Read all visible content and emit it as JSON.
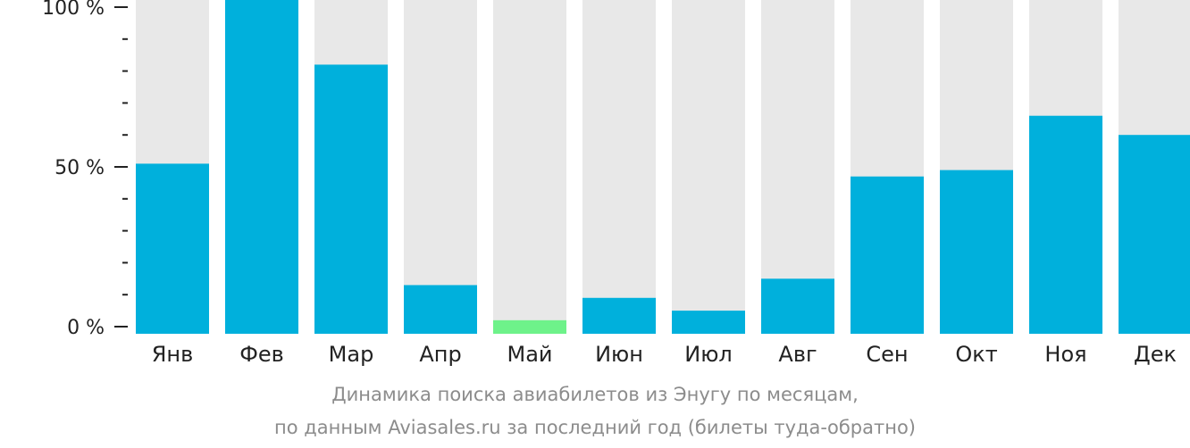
{
  "chart_data": {
    "type": "bar",
    "categories": [
      "Янв",
      "Фев",
      "Мар",
      "Апр",
      "Май",
      "Июн",
      "Июл",
      "Авг",
      "Сен",
      "Окт",
      "Ноя",
      "Дек"
    ],
    "values": [
      51,
      100,
      82,
      13,
      2,
      9,
      5,
      15,
      47,
      49,
      66,
      60
    ],
    "ylim": [
      0,
      100
    ],
    "yticks": [
      {
        "value": 100,
        "label": "100 %"
      },
      {
        "value": 50,
        "label": "50 %"
      },
      {
        "value": 0,
        "label": "0 %"
      }
    ],
    "highlight_index": 4,
    "colors": {
      "bar": "#00b0dc",
      "highlight": "#6ef28a",
      "track": "#e8e8e8",
      "axis": "#222222"
    },
    "grid": false
  },
  "caption": {
    "line1": "Динамика поиска авиабилетов из Энугу по месяцам,",
    "line2": "по данным Aviasales.ru за последний год (билеты туда-обратно)"
  }
}
